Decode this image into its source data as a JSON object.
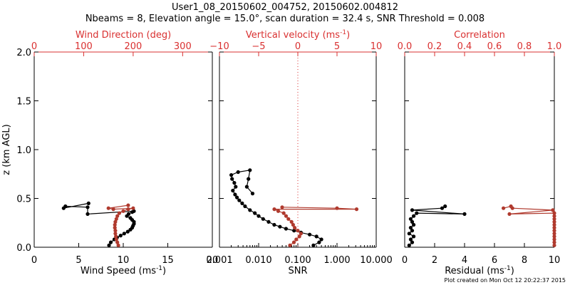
{
  "title_line1": "User1_08_20150602_004752, 20150602.004812",
  "title_line2": "Nbeams = 8, Elevation angle = 15.0°, scan duration = 32.4 s, SNR Threshold = 0.008",
  "footer": "Plot created on Mon Oct 12 20:22:37 2015",
  "colors": {
    "black": "#000000",
    "red": "#b03a2e",
    "axis_red": "#d93030"
  },
  "chart_data": [
    {
      "type": "scatter",
      "ylabel": "z (km AGL)",
      "ylim": [
        0,
        2.0
      ],
      "yticks": [
        0.0,
        0.5,
        1.0,
        1.5,
        2.0
      ],
      "ytick_labels": [
        "0.0",
        "0.5",
        "1.0",
        "1.5",
        "2.0"
      ],
      "xlabel": "Wind Speed (ms",
      "xlabel_sup": "-1",
      "xlabel_end": ")",
      "xlim": [
        0,
        20
      ],
      "xticks": [
        0,
        5,
        10,
        15,
        20
      ],
      "xtick_labels": [
        "0",
        "5",
        "10",
        "15",
        "20"
      ],
      "top_label": "Wind Direction (deg)",
      "top_lim": [
        0,
        360
      ],
      "top_ticks": [
        0,
        100,
        200,
        300
      ],
      "top_tick_labels": [
        "0",
        "100",
        "200",
        "300"
      ],
      "series": [
        {
          "name": "Wind Speed",
          "axis": "bottom",
          "color": "#000000",
          "points": [
            [
              8.4,
              0.02
            ],
            [
              8.6,
              0.05
            ],
            [
              9.0,
              0.08
            ],
            [
              9.3,
              0.1
            ],
            [
              9.7,
              0.12
            ],
            [
              10.1,
              0.14
            ],
            [
              10.5,
              0.16
            ],
            [
              10.8,
              0.18
            ],
            [
              11.0,
              0.2
            ],
            [
              11.1,
              0.22
            ],
            [
              11.2,
              0.24
            ],
            [
              11.2,
              0.26
            ],
            [
              11.0,
              0.28
            ],
            [
              10.8,
              0.3
            ],
            [
              10.4,
              0.32
            ],
            [
              10.6,
              0.34
            ],
            [
              11.0,
              0.36
            ],
            [
              11.2,
              0.37
            ],
            [
              6.0,
              0.34
            ],
            [
              6.0,
              0.41
            ],
            [
              3.5,
              0.42
            ],
            [
              3.3,
              0.4
            ],
            [
              6.1,
              0.45
            ]
          ]
        },
        {
          "name": "Wind Direction",
          "axis": "top",
          "color": "#b03a2e",
          "points": [
            [
              170,
              0.02
            ],
            [
              168,
              0.05
            ],
            [
              166,
              0.08
            ],
            [
              165,
              0.11
            ],
            [
              164,
              0.14
            ],
            [
              164,
              0.17
            ],
            [
              163,
              0.2
            ],
            [
              163,
              0.23
            ],
            [
              164,
              0.26
            ],
            [
              166,
              0.29
            ],
            [
              168,
              0.32
            ],
            [
              172,
              0.35
            ],
            [
              180,
              0.37
            ],
            [
              190,
              0.39
            ],
            [
              200,
              0.4
            ],
            [
              160,
              0.39
            ],
            [
              150,
              0.4
            ],
            [
              190,
              0.43
            ]
          ]
        }
      ]
    },
    {
      "type": "scatter",
      "xscale": "log",
      "xlabel": "SNR",
      "xlim": [
        0.001,
        10
      ],
      "xticks": [
        0.001,
        0.01,
        0.1,
        1,
        10
      ],
      "xtick_labels": [
        "0.001",
        "0.010",
        "0.100",
        "1.000",
        "10.000"
      ],
      "top_label": "Vertical velocity (ms",
      "top_label_sup": "-1",
      "top_label_end": ")",
      "top_lim": [
        -10,
        10
      ],
      "top_ticks": [
        -10,
        -5,
        0,
        5,
        10
      ],
      "top_tick_labels": [
        "−10",
        "−5",
        "0",
        "5",
        "10"
      ],
      "series": [
        {
          "name": "SNR",
          "axis": "bottom",
          "color": "#000000",
          "points": [
            [
              0.25,
              0.02
            ],
            [
              0.35,
              0.05
            ],
            [
              0.4,
              0.08
            ],
            [
              0.3,
              0.11
            ],
            [
              0.2,
              0.13
            ],
            [
              0.12,
              0.15
            ],
            [
              0.08,
              0.17
            ],
            [
              0.05,
              0.19
            ],
            [
              0.035,
              0.21
            ],
            [
              0.025,
              0.23
            ],
            [
              0.018,
              0.26
            ],
            [
              0.013,
              0.29
            ],
            [
              0.01,
              0.32
            ],
            [
              0.008,
              0.35
            ],
            [
              0.006,
              0.38
            ],
            [
              0.0045,
              0.42
            ],
            [
              0.0038,
              0.45
            ],
            [
              0.0032,
              0.48
            ],
            [
              0.0028,
              0.51
            ],
            [
              0.0025,
              0.54
            ],
            [
              0.0022,
              0.58
            ],
            [
              0.0026,
              0.62
            ],
            [
              0.0024,
              0.66
            ],
            [
              0.0021,
              0.7
            ],
            [
              0.002,
              0.74
            ],
            [
              0.003,
              0.77
            ],
            [
              0.006,
              0.79
            ],
            [
              0.0055,
              0.7
            ],
            [
              0.005,
              0.62
            ],
            [
              0.007,
              0.55
            ]
          ]
        },
        {
          "name": "Vertical velocity",
          "axis": "top",
          "color": "#b03a2e",
          "points": [
            [
              -1.0,
              0.02
            ],
            [
              -0.5,
              0.05
            ],
            [
              -0.2,
              0.08
            ],
            [
              0.2,
              0.11
            ],
            [
              0.4,
              0.14
            ],
            [
              0.0,
              0.17
            ],
            [
              -0.4,
              0.2
            ],
            [
              -0.6,
              0.23
            ],
            [
              -0.8,
              0.26
            ],
            [
              -1.2,
              0.29
            ],
            [
              -1.5,
              0.32
            ],
            [
              -1.8,
              0.35
            ],
            [
              -2.5,
              0.37
            ],
            [
              -3.0,
              0.39
            ],
            [
              7.5,
              0.39
            ],
            [
              5.0,
              0.4
            ],
            [
              -2.0,
              0.41
            ]
          ]
        }
      ]
    },
    {
      "type": "scatter",
      "xlabel": "Residual (ms",
      "xlabel_sup": "-1",
      "xlabel_end": ")",
      "xlim": [
        0,
        10
      ],
      "xticks": [
        0,
        2,
        4,
        6,
        8,
        10
      ],
      "xtick_labels": [
        "0",
        "2",
        "4",
        "6",
        "8",
        "10"
      ],
      "top_label": "Correlation",
      "top_lim": [
        0,
        1.0
      ],
      "top_ticks": [
        0.0,
        0.2,
        0.4,
        0.6,
        0.8,
        1.0
      ],
      "top_tick_labels": [
        "0.0",
        "0.2",
        "0.4",
        "0.6",
        "0.8",
        "1.0"
      ],
      "series": [
        {
          "name": "Residual",
          "axis": "bottom",
          "color": "#000000",
          "points": [
            [
              0.3,
              0.02
            ],
            [
              0.5,
              0.05
            ],
            [
              0.4,
              0.08
            ],
            [
              0.6,
              0.11
            ],
            [
              0.3,
              0.14
            ],
            [
              0.5,
              0.17
            ],
            [
              0.4,
              0.2
            ],
            [
              0.6,
              0.23
            ],
            [
              0.5,
              0.26
            ],
            [
              0.4,
              0.29
            ],
            [
              0.6,
              0.32
            ],
            [
              0.8,
              0.35
            ],
            [
              4.0,
              0.34
            ],
            [
              0.5,
              0.38
            ],
            [
              2.5,
              0.4
            ],
            [
              2.7,
              0.42
            ]
          ]
        },
        {
          "name": "Correlation",
          "axis": "top",
          "color": "#b03a2e",
          "points": [
            [
              1.0,
              0.02
            ],
            [
              1.0,
              0.05
            ],
            [
              1.0,
              0.08
            ],
            [
              1.0,
              0.11
            ],
            [
              1.0,
              0.14
            ],
            [
              1.0,
              0.17
            ],
            [
              1.0,
              0.2
            ],
            [
              1.0,
              0.23
            ],
            [
              1.0,
              0.26
            ],
            [
              1.0,
              0.29
            ],
            [
              1.0,
              0.32
            ],
            [
              1.0,
              0.35
            ],
            [
              0.7,
              0.34
            ],
            [
              0.99,
              0.38
            ],
            [
              0.72,
              0.4
            ],
            [
              0.71,
              0.42
            ],
            [
              0.66,
              0.4
            ]
          ]
        }
      ]
    }
  ]
}
